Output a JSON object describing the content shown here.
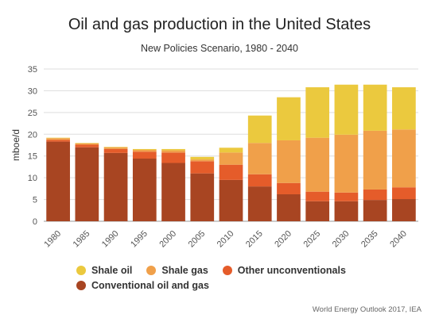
{
  "title": "Oil and gas production in the United States",
  "subtitle": "New Policies Scenario, 1980 - 2040",
  "source": "World Energy Outlook 2017, IEA",
  "chart_data": {
    "type": "bar",
    "stacked": true,
    "title": "Oil and gas production in the United States",
    "subtitle": "New Policies Scenario, 1980 - 2040",
    "xlabel": "",
    "ylabel": "mboe/d",
    "ylim": [
      0,
      35
    ],
    "yticks": [
      0,
      5,
      10,
      15,
      20,
      25,
      30,
      35
    ],
    "grid": true,
    "legend_position": "bottom-left",
    "categories": [
      "1980",
      "1985",
      "1990",
      "1995",
      "2000",
      "2005",
      "2010",
      "2015",
      "2020",
      "2025",
      "2030",
      "2035",
      "2040"
    ],
    "series": [
      {
        "name": "Conventional oil and gas",
        "color": "#a84522",
        "values": [
          18.3,
          17.0,
          15.7,
          14.4,
          13.4,
          11.0,
          9.5,
          8.0,
          6.2,
          4.6,
          4.6,
          4.9,
          5.1
        ]
      },
      {
        "name": "Other unconventionals",
        "color": "#e55c2a",
        "values": [
          0.4,
          0.6,
          0.9,
          1.6,
          2.4,
          2.8,
          3.5,
          2.8,
          2.6,
          2.2,
          2.0,
          2.4,
          2.7
        ]
      },
      {
        "name": "Shale gas",
        "color": "#f0a04a",
        "values": [
          0.4,
          0.3,
          0.4,
          0.4,
          0.5,
          0.4,
          2.8,
          7.2,
          9.8,
          12.4,
          13.3,
          13.5,
          13.3
        ]
      },
      {
        "name": "Shale oil",
        "color": "#ebc93e",
        "values": [
          0.1,
          0.1,
          0.1,
          0.2,
          0.3,
          0.6,
          1.1,
          6.3,
          9.9,
          11.6,
          11.5,
          10.6,
          9.7
        ]
      }
    ]
  },
  "legend": {
    "row1": [
      "Shale oil",
      "Shale gas",
      "Other unconventionals"
    ],
    "row2": [
      "Conventional oil and gas"
    ]
  }
}
